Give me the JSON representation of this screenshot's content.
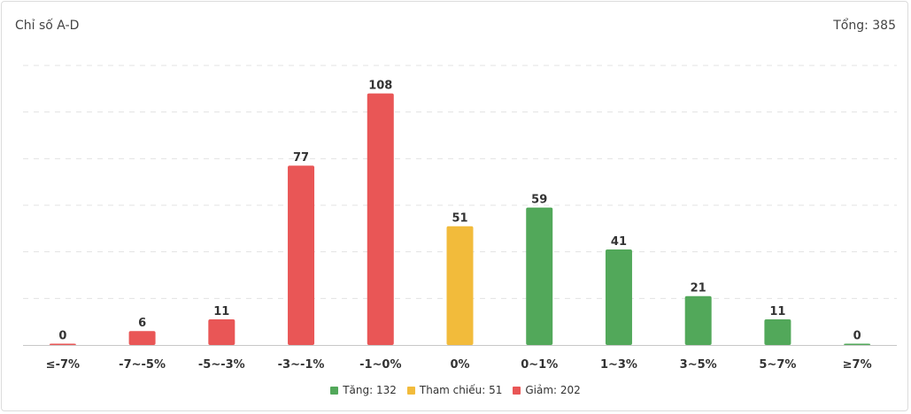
{
  "header": {
    "title": "Chỉ số A-D",
    "total_label": "Tổng: 385"
  },
  "colors": {
    "up": "#52a85a",
    "ref": "#f2bb3b",
    "down": "#e95656",
    "grid": "#e3e3e3",
    "axis": "#c8c8c8"
  },
  "legend": [
    {
      "label": "Tăng: 132",
      "color": "#52a85a"
    },
    {
      "label": "Tham chiếu: 51",
      "color": "#f2bb3b"
    },
    {
      "label": "Giảm: 202",
      "color": "#e95656"
    }
  ],
  "chart_data": {
    "type": "bar",
    "categories": [
      "≤-7%",
      "-7~-5%",
      "-5~-3%",
      "-3~-1%",
      "-1~0%",
      "0%",
      "0~1%",
      "1~3%",
      "3~5%",
      "5~7%",
      "≥7%"
    ],
    "values": [
      0,
      6,
      11,
      77,
      108,
      51,
      59,
      41,
      21,
      11,
      0
    ],
    "bar_colors": [
      "#e95656",
      "#e95656",
      "#e95656",
      "#e95656",
      "#e95656",
      "#f2bb3b",
      "#52a85a",
      "#52a85a",
      "#52a85a",
      "#52a85a",
      "#52a85a"
    ],
    "ylim": [
      0,
      120
    ],
    "grid": true,
    "legend_position": "bottom"
  }
}
